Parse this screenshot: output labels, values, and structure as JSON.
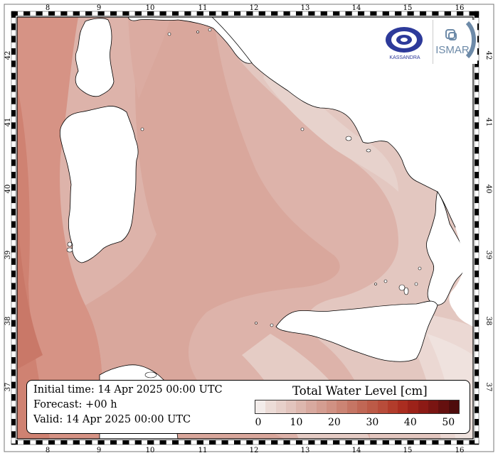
{
  "map": {
    "longitude_ticks": [
      "8",
      "9",
      "10",
      "11",
      "12",
      "13",
      "14",
      "15",
      "16"
    ],
    "latitude_ticks": [
      "42",
      "41",
      "40",
      "39",
      "38",
      "37"
    ],
    "land_color": "#ffffff",
    "coastline_color": "#000000"
  },
  "info": {
    "initial_time": "Initial time: 14 Apr 2025 00:00 UTC",
    "forecast": "Forecast: +00 h",
    "valid": "Valid: 14 Apr 2025 00:00 UTC"
  },
  "colorbar": {
    "title": "Total Water Level [cm]",
    "ticks": [
      "0",
      "10",
      "20",
      "30",
      "40",
      "50"
    ],
    "range": [
      0,
      52
    ],
    "colors": [
      "#f3ecea",
      "#ecdcd7",
      "#e7d0ca",
      "#e2c4bd",
      "#ddb7ae",
      "#d8a99f",
      "#d49d91",
      "#d09183",
      "#cb8474",
      "#c57564",
      "#c06755",
      "#bc5a47",
      "#b84c3a",
      "#b23c2b",
      "#aa2d20",
      "#9c2219",
      "#8c1a15",
      "#7a1512",
      "#65100f",
      "#4e0c0c"
    ]
  },
  "logos": {
    "left_text": "KASSANDRA",
    "right_text": "ISMAR"
  }
}
